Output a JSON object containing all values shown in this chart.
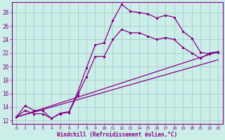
{
  "xlabel": "Windchill (Refroidissement éolien,°C)",
  "bg_color": "#cceee8",
  "grid_color": "#aacccc",
  "line_color": "#880088",
  "xlim": [
    -0.5,
    23.5
  ],
  "ylim": [
    11.5,
    29.5
  ],
  "xticks": [
    0,
    1,
    2,
    3,
    4,
    5,
    6,
    7,
    8,
    9,
    10,
    11,
    12,
    13,
    14,
    15,
    16,
    17,
    18,
    19,
    20,
    21,
    22,
    23
  ],
  "yticks": [
    12,
    14,
    16,
    18,
    20,
    22,
    24,
    26,
    28
  ],
  "series1_x": [
    0,
    1,
    2,
    3,
    4,
    5,
    6,
    7,
    8,
    9,
    10,
    11,
    12,
    13,
    14,
    15,
    16,
    17,
    18,
    19,
    20,
    21,
    22,
    23
  ],
  "series1_y": [
    12.5,
    14.2,
    13.5,
    13.5,
    12.3,
    13.1,
    13.3,
    16.2,
    19.8,
    23.2,
    23.5,
    26.8,
    29.2,
    28.2,
    28.0,
    27.8,
    27.2,
    27.6,
    27.3,
    25.2,
    24.2,
    22.1,
    21.9,
    22.1
  ],
  "series2_x": [
    0,
    1,
    2,
    3,
    4,
    5,
    6,
    7,
    8,
    9,
    10,
    11,
    12,
    13,
    14,
    15,
    16,
    17,
    18,
    19,
    20,
    21,
    22,
    23
  ],
  "series2_y": [
    12.5,
    13.5,
    13.0,
    13.0,
    12.3,
    13.0,
    13.2,
    15.8,
    18.5,
    21.5,
    21.5,
    24.0,
    25.5,
    25.0,
    25.0,
    24.5,
    24.0,
    24.3,
    24.0,
    22.8,
    22.0,
    21.2,
    22.0,
    22.2
  ],
  "series3_x": [
    0,
    23
  ],
  "series3_y": [
    12.5,
    22.2
  ],
  "series4_x": [
    0,
    23
  ],
  "series4_y": [
    12.5,
    21.0
  ]
}
